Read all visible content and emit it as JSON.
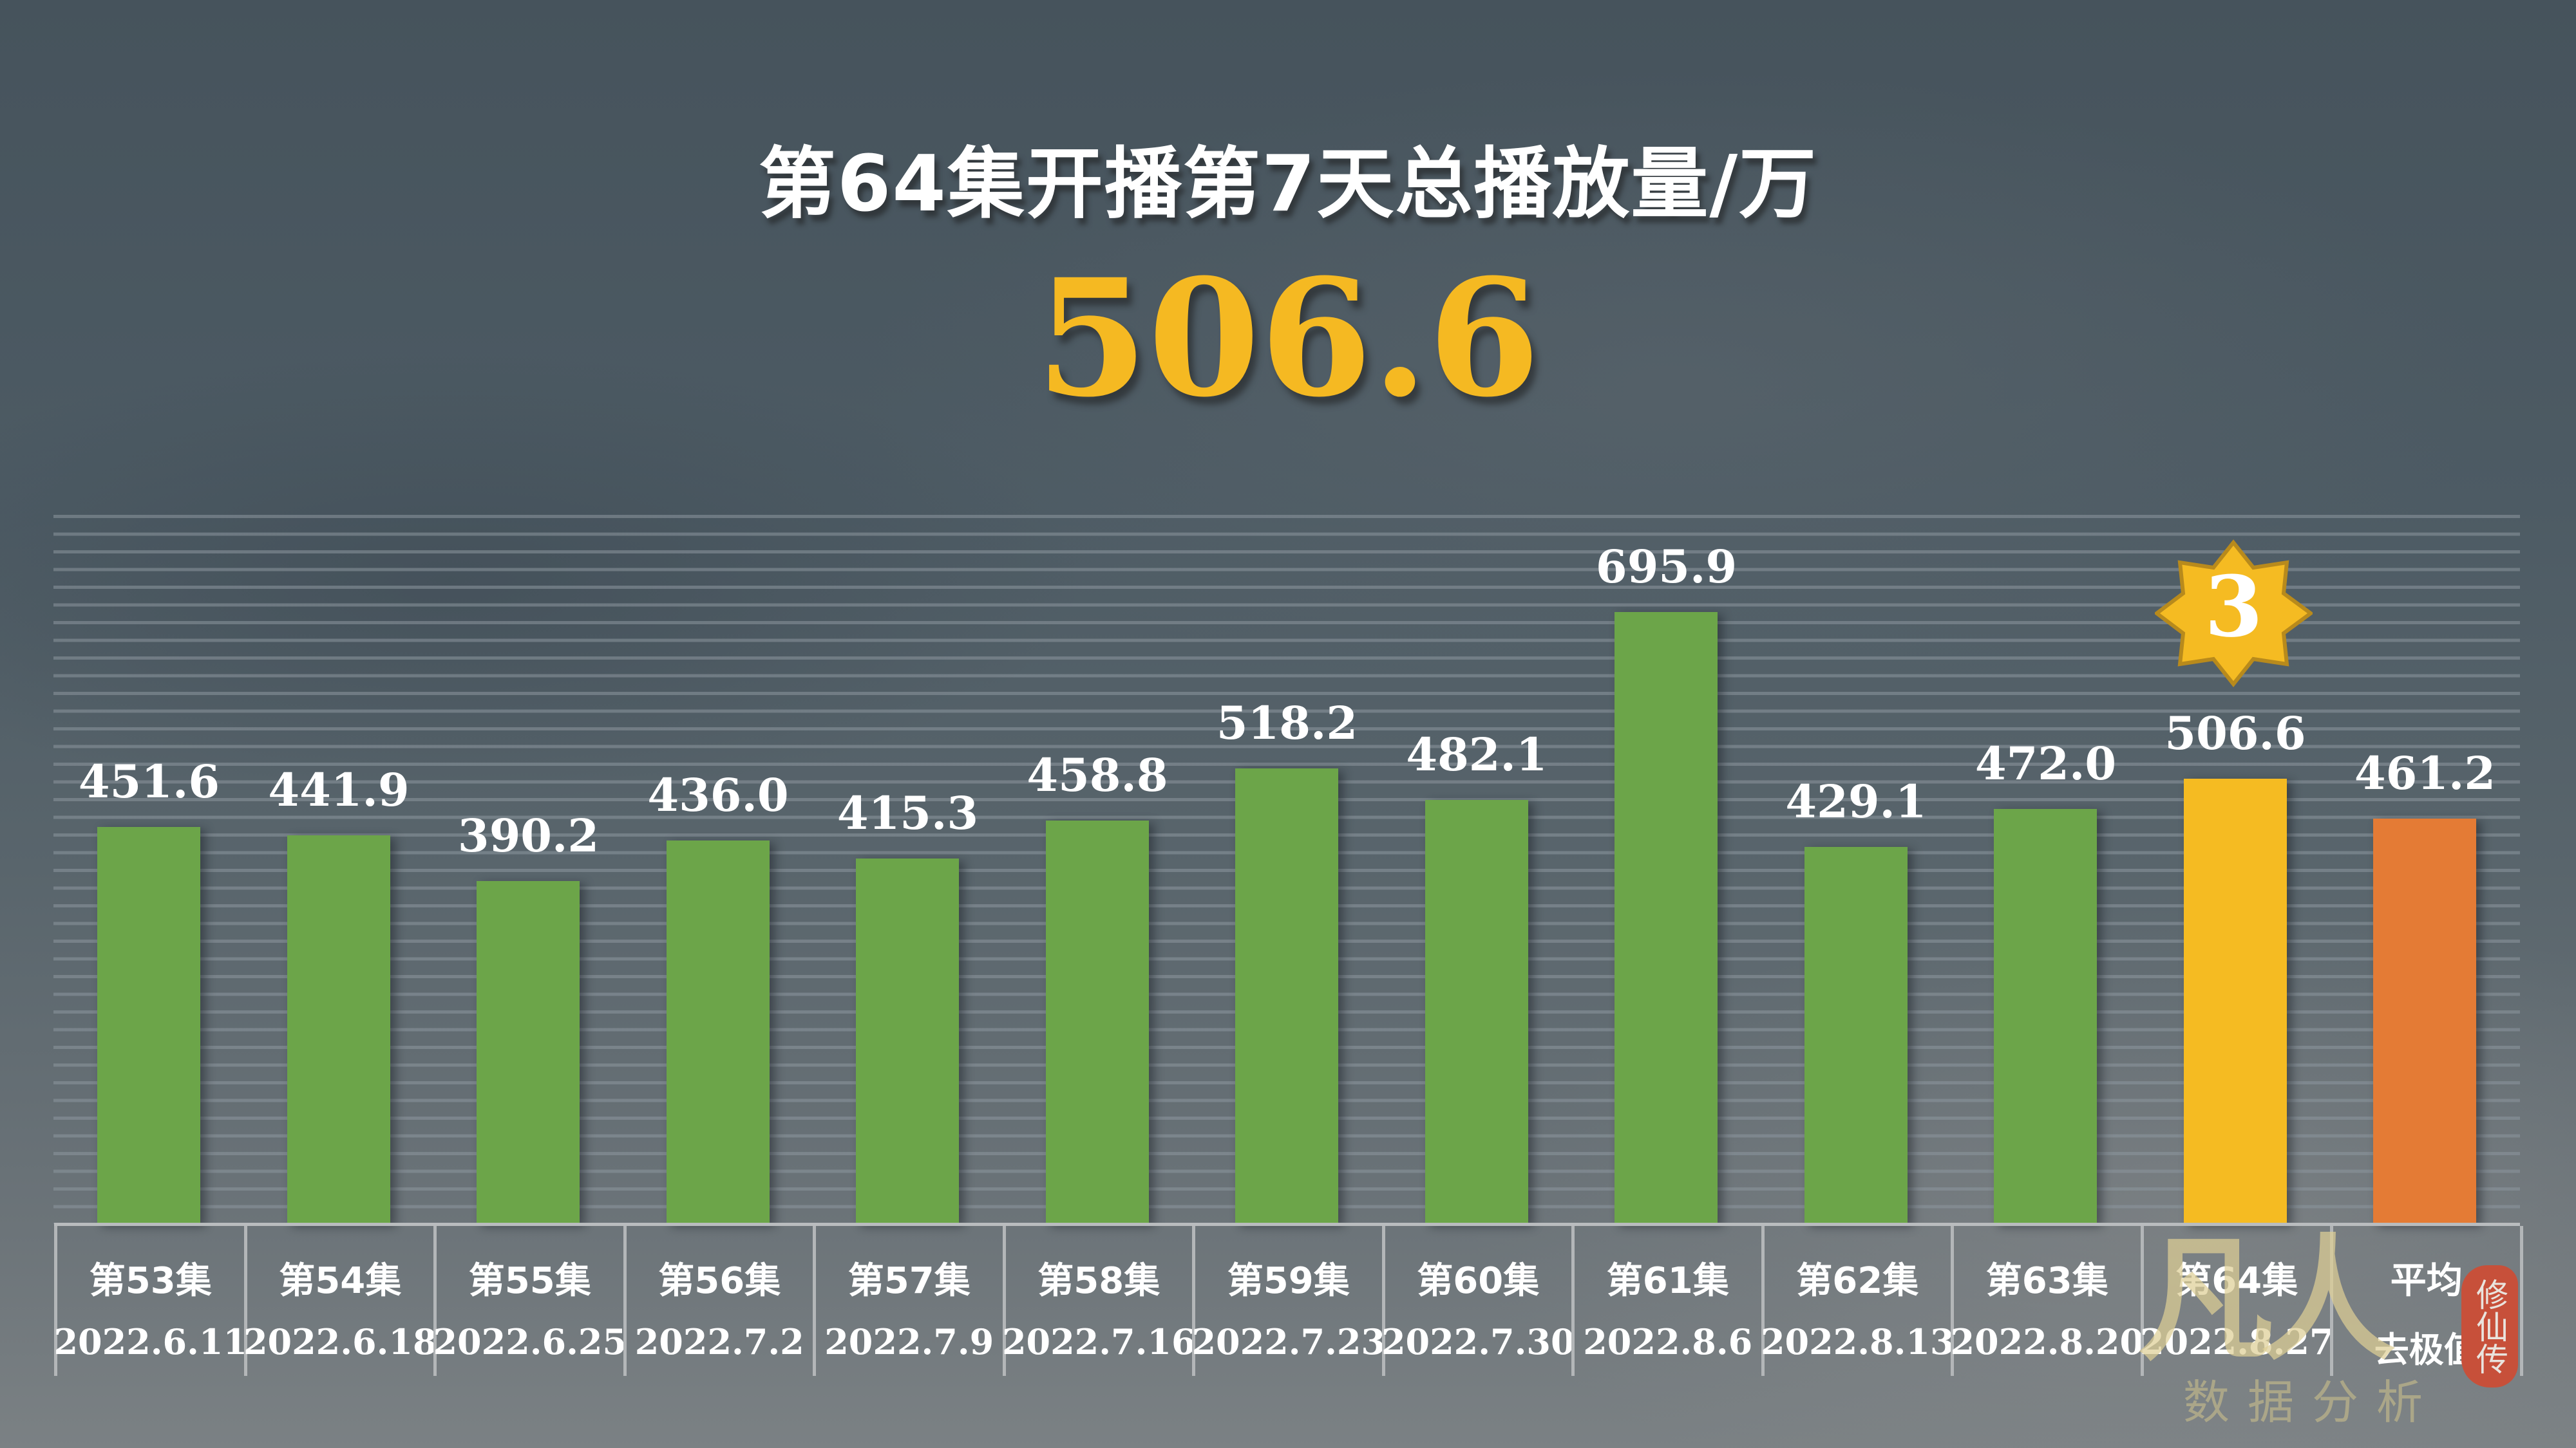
{
  "title": "第64集开播第7天总播放量/万",
  "highlight_value": "506.6",
  "badge": {
    "rank": "3",
    "color": "#f5bb22"
  },
  "colors": {
    "normal": "#6ca549",
    "current": "#f5bb22",
    "average": "#e47b35",
    "background": "#4d5b64"
  },
  "bars": [
    {
      "episode": "第53集",
      "date": "2022.6.11",
      "value": 451.6,
      "label": "451.6",
      "type": "normal"
    },
    {
      "episode": "第54集",
      "date": "2022.6.18",
      "value": 441.9,
      "label": "441.9",
      "type": "normal"
    },
    {
      "episode": "第55集",
      "date": "2022.6.25",
      "value": 390.2,
      "label": "390.2",
      "type": "normal"
    },
    {
      "episode": "第56集",
      "date": "2022.7.2",
      "value": 436.0,
      "label": "436.0",
      "type": "normal"
    },
    {
      "episode": "第57集",
      "date": "2022.7.9",
      "value": 415.3,
      "label": "415.3",
      "type": "normal"
    },
    {
      "episode": "第58集",
      "date": "2022.7.16",
      "value": 458.8,
      "label": "458.8",
      "type": "normal"
    },
    {
      "episode": "第59集",
      "date": "2022.7.23",
      "value": 518.2,
      "label": "518.2",
      "type": "normal"
    },
    {
      "episode": "第60集",
      "date": "2022.7.30",
      "value": 482.1,
      "label": "482.1",
      "type": "normal"
    },
    {
      "episode": "第61集",
      "date": "2022.8.6",
      "value": 695.9,
      "label": "695.9",
      "type": "normal"
    },
    {
      "episode": "第62集",
      "date": "2022.8.13",
      "value": 429.1,
      "label": "429.1",
      "type": "normal"
    },
    {
      "episode": "第63集",
      "date": "2022.8.20",
      "value": 472.0,
      "label": "472.0",
      "type": "normal"
    },
    {
      "episode": "第64集",
      "date": "2022.8.27",
      "value": 506.6,
      "label": "506.6",
      "type": "current"
    },
    {
      "episode": "平均",
      "date": "去极值",
      "value": 461.2,
      "label": "461.2",
      "type": "average"
    }
  ],
  "watermark": {
    "main": "凡人",
    "sub": "数据分析",
    "seal": "修仙传"
  },
  "chart_data": {
    "type": "bar",
    "title": "第64集开播第7天总播放量/万",
    "subtitle": "506.6",
    "categories": [
      "第53集 2022.6.11",
      "第54集 2022.6.18",
      "第55集 2022.6.25",
      "第56集 2022.7.2",
      "第57集 2022.7.9",
      "第58集 2022.7.16",
      "第59集 2022.7.23",
      "第60集 2022.7.30",
      "第61集 2022.8.6",
      "第62集 2022.8.13",
      "第63集 2022.8.20",
      "第64集 2022.8.27",
      "平均 去极值"
    ],
    "values": [
      451.6,
      441.9,
      390.2,
      436.0,
      415.3,
      458.8,
      518.2,
      482.1,
      695.9,
      429.1,
      472.0,
      506.6,
      461.2
    ],
    "xlabel": "",
    "ylabel": "总播放量/万",
    "ylim": [
      0,
      700
    ],
    "grid": true,
    "annotations": [
      {
        "category": "第64集 2022.8.27",
        "text": "3",
        "shape": "8-point star badge"
      }
    ],
    "legend": "none"
  }
}
